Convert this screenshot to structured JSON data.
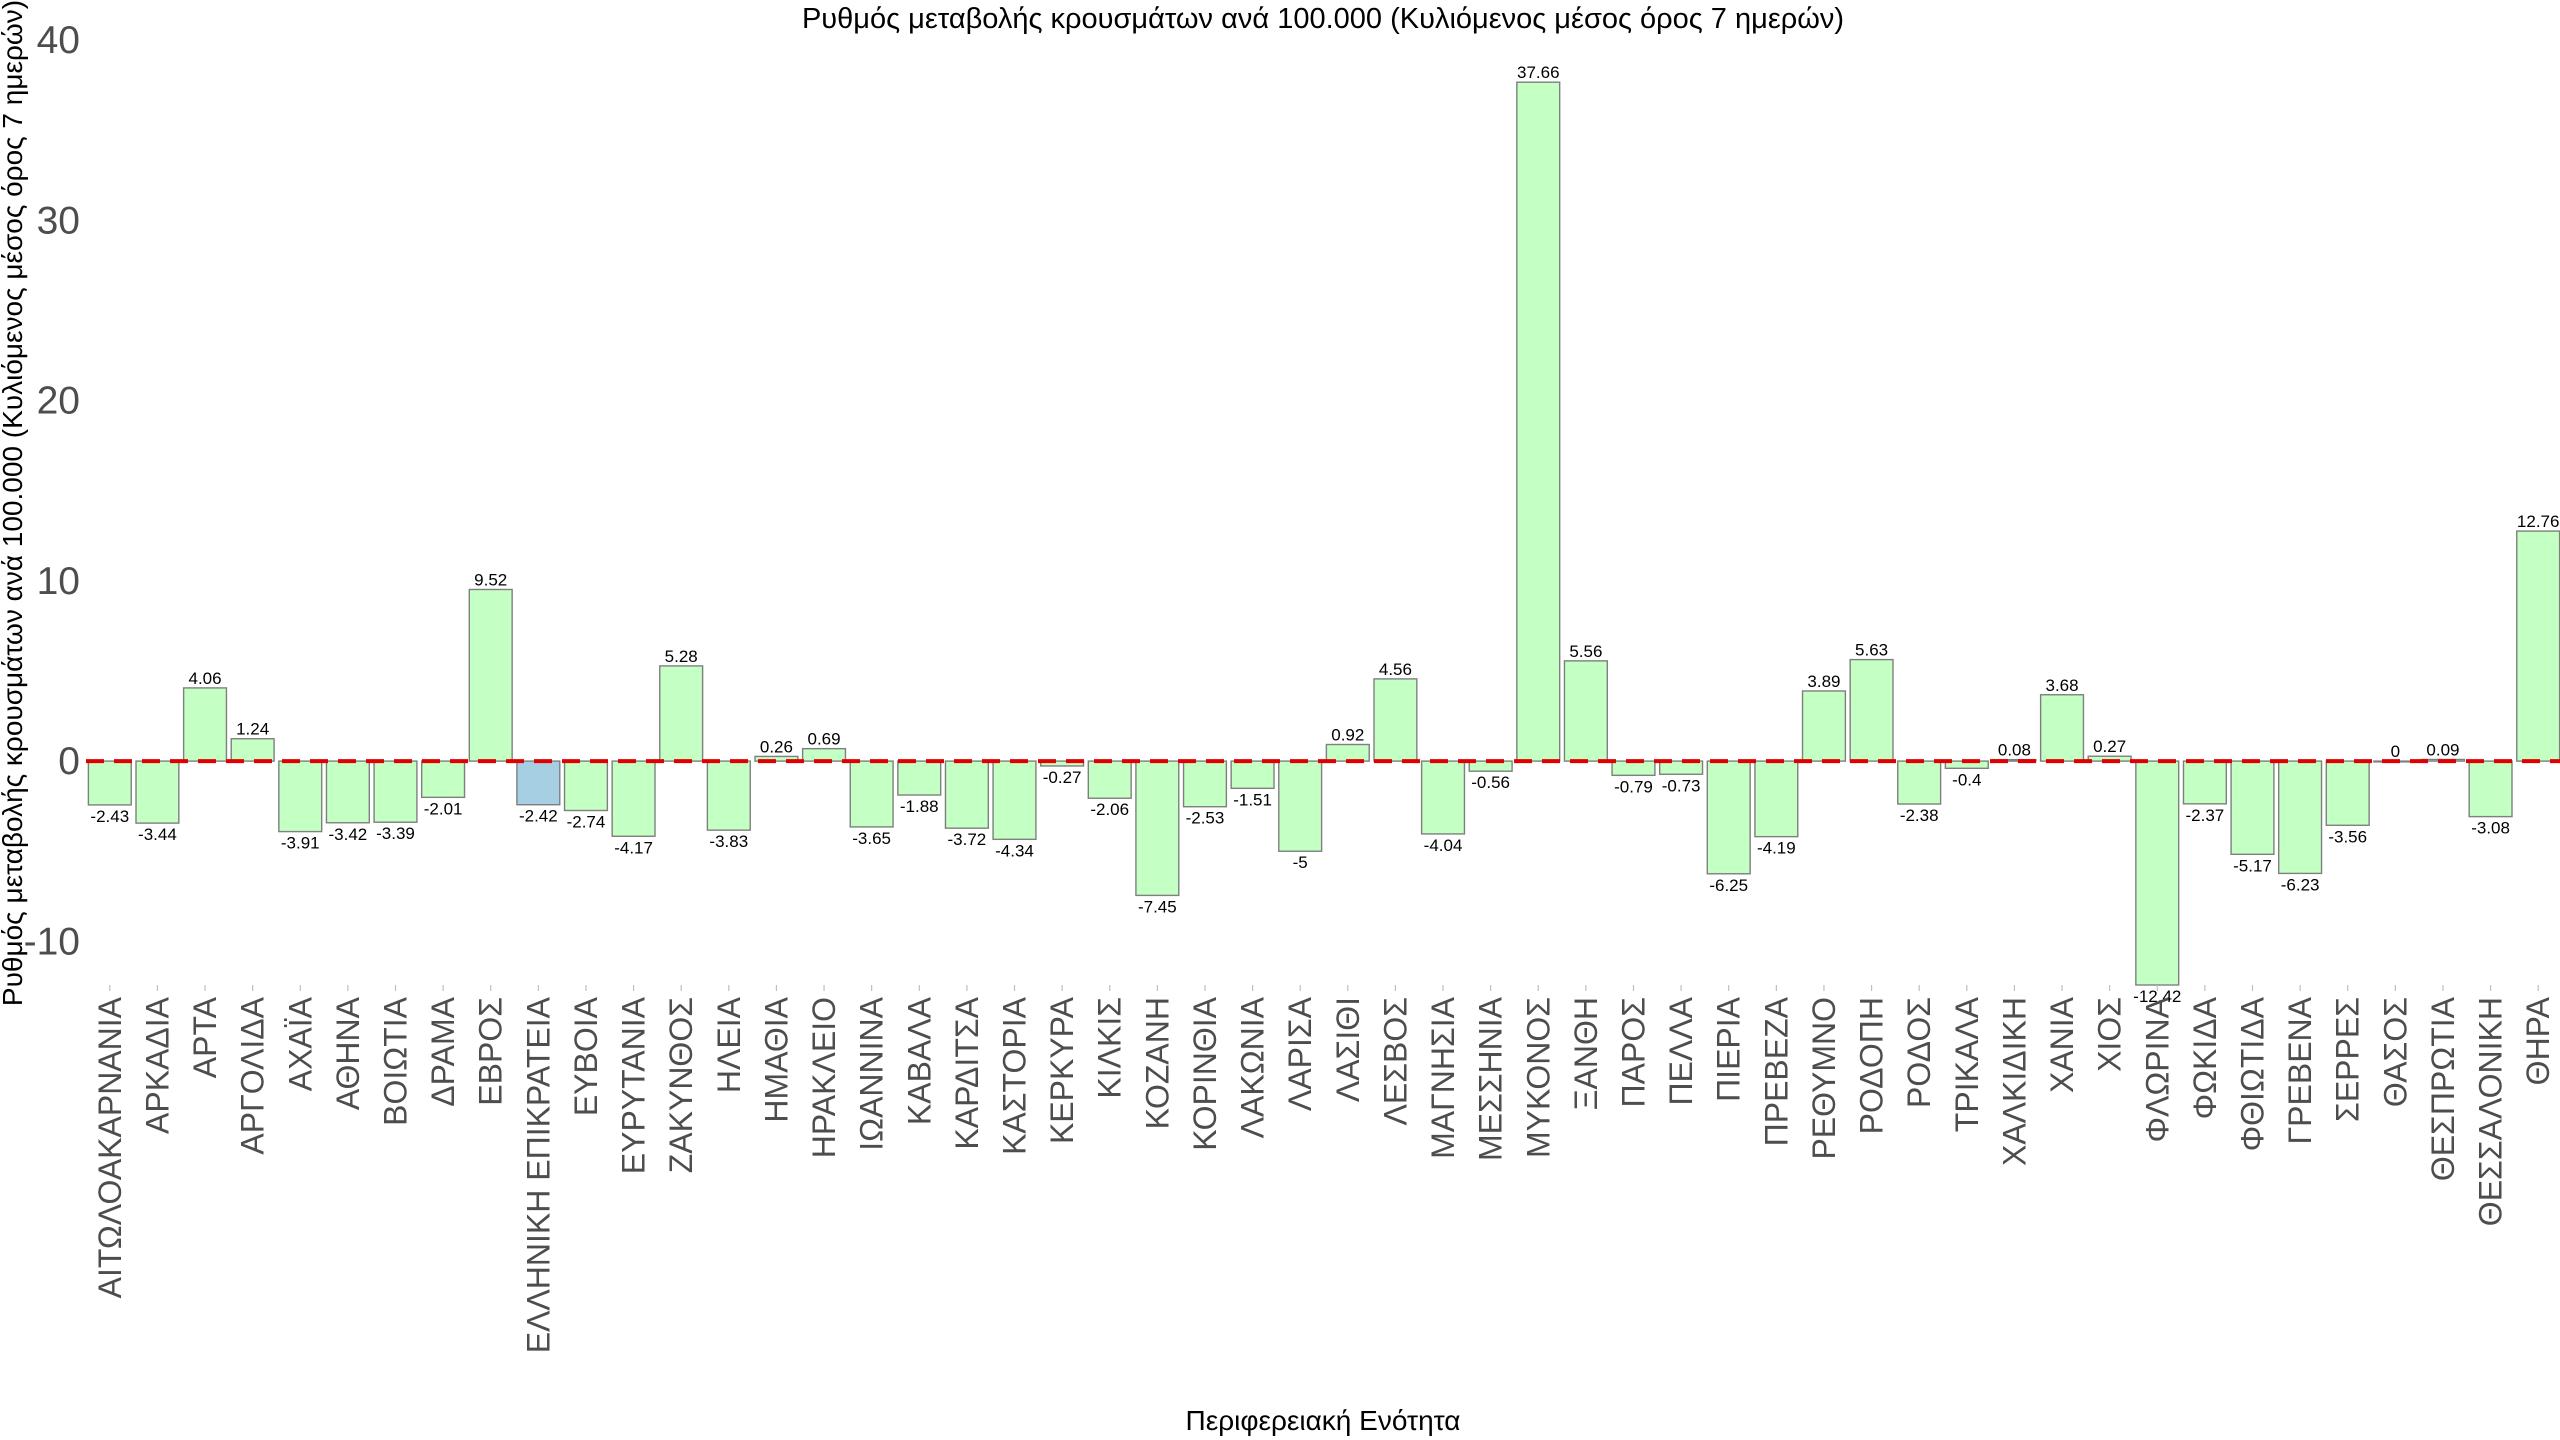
{
  "chart_data": {
    "type": "bar",
    "title": "Ρυθμός μεταβολής κρουσμάτων ανά 100.000 (Κυλιόμενος μέσος όρος 7 ημερών)",
    "xlabel": "Περιφερειακή Ενότητα",
    "ylabel": "Ρυθμός μεταβολής κρουσμάτων ανά 100.000 (Κυλιόμενος μέσος όρος 7 ημερών)",
    "ylim": [
      -12.42,
      40
    ],
    "yticks": [
      -10,
      0,
      10,
      20,
      30,
      40
    ],
    "grid": false,
    "reference_line": {
      "y": 0,
      "color": "#e10000",
      "style": "dashed"
    },
    "colors": {
      "default_bar": "#c4ffc4",
      "highlight_bar": "#a7cfe3",
      "bar_edge": "#7f7f7f"
    },
    "categories": [
      "ΑΙΤΩΛΟΑΚΑΡΝΑΝΙΑ",
      "ΑΡΚΑΔΙΑ",
      "ΑΡΤΑ",
      "ΑΡΓΟΛΙΔΑ",
      "ΑΧΑΪΑ",
      "ΑΘΗΝΑ",
      "ΒΟΙΩΤΙΑ",
      "ΔΡΑΜΑ",
      "ΕΒΡΟΣ",
      "ΕΛΛΗΝΙΚΗ ΕΠΙΚΡΑΤΕΙΑ",
      "ΕΥΒΟΙΑ",
      "ΕΥΡΥΤΑΝΙΑ",
      "ΖΑΚΥΝΘΟΣ",
      "ΗΛΕΙΑ",
      "ΗΜΑΘΙΑ",
      "ΗΡΑΚΛΕΙΟ",
      "ΙΩΑΝΝΙΝΑ",
      "ΚΑΒΑΛΑ",
      "ΚΑΡΔΙΤΣΑ",
      "ΚΑΣΤΟΡΙΑ",
      "ΚΕΡΚΥΡΑ",
      "ΚΙΛΚΙΣ",
      "ΚΟΖΑΝΗ",
      "ΚΟΡΙΝΘΙΑ",
      "ΛΑΚΩΝΙΑ",
      "ΛΑΡΙΣΑ",
      "ΛΑΣΙΘΙ",
      "ΛΕΣΒΟΣ",
      "ΜΑΓΝΗΣΙΑ",
      "ΜΕΣΣΗΝΙΑ",
      "ΜΥΚΟΝΟΣ",
      "ΞΑΝΘΗ",
      "ΠΑΡΟΣ",
      "ΠΕΛΛΑ",
      "ΠΙΕΡΙΑ",
      "ΠΡΕΒΕΖΑ",
      "ΡΕΘΥΜΝΟ",
      "ΡΟΔΟΠΗ",
      "ΡΟΔΟΣ",
      "ΤΡΙΚΑΛΑ",
      "ΧΑΛΚΙΔΙΚΗ",
      "ΧΑΝΙΑ",
      "ΧΙΟΣ",
      "ΦΛΩΡΙΝΑ",
      "ΦΩΚΙΔΑ",
      "ΦΘΙΩΤΙΔΑ",
      "ΓΡΕΒΕΝΑ",
      "ΣΕΡΡΕΣ",
      "ΘΑΣΟΣ",
      "ΘΕΣΠΡΩΤΙΑ",
      "ΘΕΣΣΑΛΟΝΙΚΗ",
      "ΘΗΡΑ"
    ],
    "values": [
      -2.43,
      -3.44,
      4.06,
      1.24,
      -3.91,
      -3.42,
      -3.39,
      -2.01,
      9.52,
      -2.42,
      -2.74,
      -4.17,
      5.28,
      -3.83,
      0.26,
      0.69,
      -3.65,
      -1.88,
      -3.72,
      -4.34,
      -0.27,
      -2.06,
      -7.45,
      -2.53,
      -1.51,
      -5,
      0.92,
      4.56,
      -4.04,
      -0.56,
      37.66,
      5.56,
      -0.79,
      -0.73,
      -6.25,
      -4.19,
      3.89,
      5.63,
      -2.38,
      -0.4,
      0.08,
      3.68,
      0.27,
      -12.42,
      -2.37,
      -5.17,
      -6.23,
      -3.56,
      0,
      0.09,
      -3.08,
      12.76
    ],
    "data_labels": [
      "-2.43",
      "-3.44",
      "4.06",
      "1.24",
      "-3.91",
      "-3.42",
      "-3.39",
      "-2.01",
      "9.52",
      "-2.42",
      "-2.74",
      "-4.17",
      "5.28",
      "-3.83",
      "0.26",
      "0.69",
      "-3.65",
      "-1.88",
      "-3.72",
      "-4.34",
      "-0.27",
      "-2.06",
      "-7.45",
      "-2.53",
      "-1.51",
      "-5",
      "0.92",
      "4.56",
      "-4.04",
      "-0.56",
      "37.66",
      "5.56",
      "-0.79",
      "-0.73",
      "-6.25",
      "-4.19",
      "3.89",
      "5.63",
      "-2.38",
      "-0.4",
      "0.08",
      "3.68",
      "0.27",
      "-12.42",
      "-2.37",
      "-5.17",
      "-6.23",
      "-3.56",
      "0",
      "0.09",
      "-3.08",
      "12.76"
    ],
    "highlight_category": "ΕΛΛΗΝΙΚΗ ΕΠΙΚΡΑΤΕΙΑ"
  }
}
